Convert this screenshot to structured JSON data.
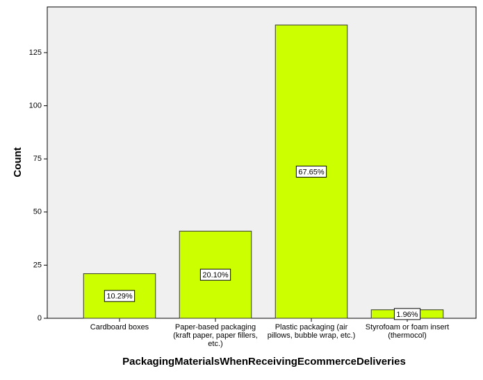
{
  "chart_data": {
    "type": "bar",
    "x_label": "PackagingMaterialsWhenReceivingEcommerceDeliveries",
    "y_label": "Count",
    "categories": [
      "Cardboard boxes",
      "Paper-based packaging (kraft paper, paper fillers, etc.)",
      "Plastic packaging (air pillows, bubble wrap, etc.)",
      "Styrofoam or foam insert (thermocol)"
    ],
    "values": [
      21,
      41,
      138,
      4
    ],
    "percent_labels": [
      "10.29%",
      "20.10%",
      "67.65%",
      "1.96%"
    ],
    "color": "#ccff00",
    "ylim": [
      0,
      146.5
    ],
    "yticks": [
      0,
      25,
      50,
      75,
      100,
      125
    ],
    "grid": false
  }
}
